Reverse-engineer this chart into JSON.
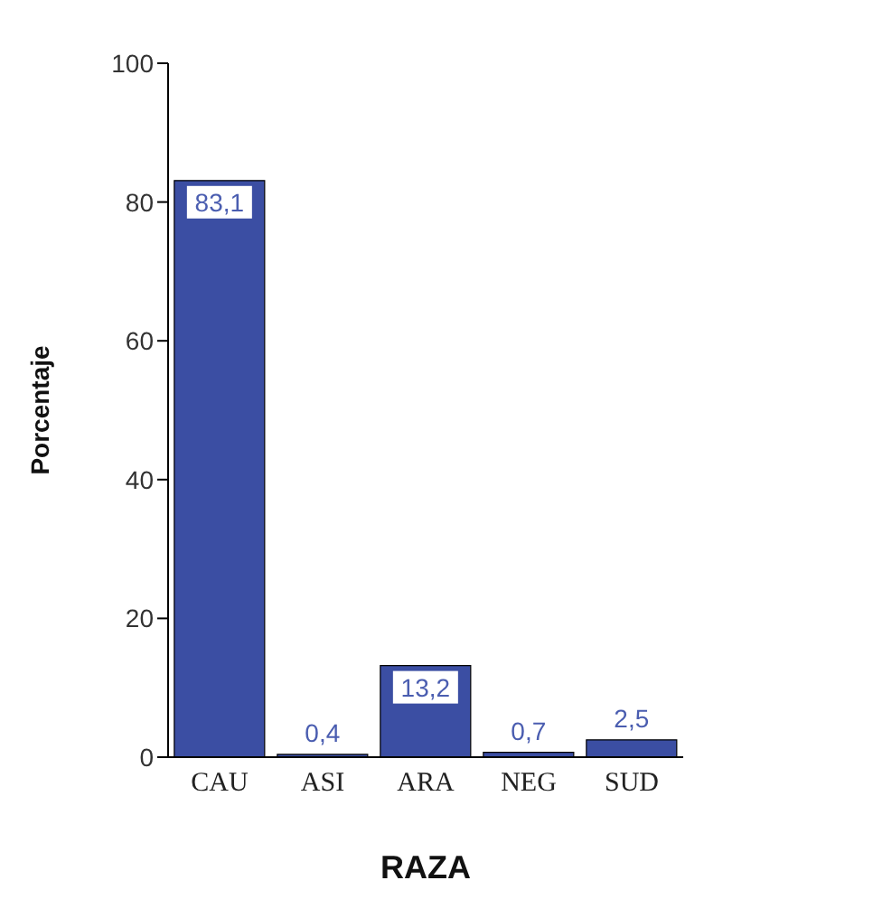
{
  "chart_data": {
    "type": "bar",
    "xlabel": "RAZA",
    "ylabel": "Porcentaje",
    "categories": [
      "CAU",
      "ASI",
      "ARA",
      "NEG",
      "SUD"
    ],
    "values": [
      83.1,
      0.4,
      13.2,
      0.7,
      2.5
    ],
    "value_labels": [
      "83,1",
      "0,4",
      "13,2",
      "0,7",
      "2,5"
    ],
    "color": "#3b4ea3",
    "ylim": [
      0,
      100
    ],
    "yticks": [
      0,
      20,
      40,
      60,
      80,
      100
    ],
    "grid": false
  }
}
